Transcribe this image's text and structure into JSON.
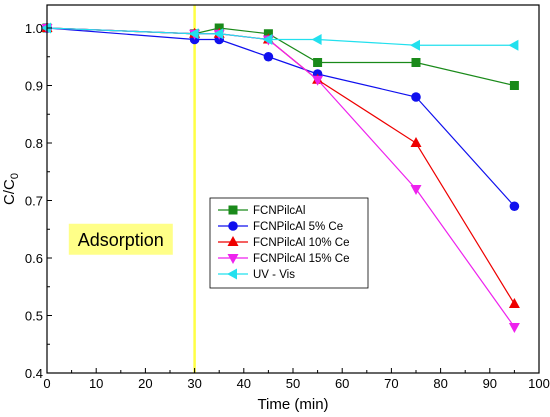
{
  "chart_data": {
    "type": "line",
    "xlabel": "Time (min)",
    "ylabel_main": "C/C",
    "ylabel_sub": "0",
    "xlim": [
      0,
      100
    ],
    "ylim": [
      0.4,
      1.04
    ],
    "xticks": [
      0,
      10,
      20,
      30,
      40,
      50,
      60,
      70,
      80,
      90,
      100
    ],
    "xtick_labels": [
      "0",
      "10",
      "20",
      "30",
      "40",
      "50",
      "60",
      "70",
      "80",
      "90",
      "100"
    ],
    "yticks": [
      0.4,
      0.5,
      0.6,
      0.7,
      0.8,
      0.9,
      1.0
    ],
    "ytick_labels": [
      "0.4",
      "0.5",
      "0.6",
      "0.7",
      "0.8",
      "0.9",
      "1.0"
    ],
    "grid": false,
    "legend_position": "center",
    "vline_x": 30,
    "vline_color": "#ffff44",
    "annotation": {
      "text": "Adsorption",
      "x": 15,
      "y": 0.63,
      "bg": "#ffff88"
    },
    "series": [
      {
        "name": "FCNPilcAl",
        "color": "#1a8a1a",
        "marker": "square",
        "x": [
          0,
          30,
          35,
          45,
          55,
          75,
          95
        ],
        "y": [
          1.0,
          0.99,
          1.0,
          0.99,
          0.94,
          0.94,
          0.9
        ]
      },
      {
        "name": "FCNPilcAl 5% Ce",
        "color": "#1010ee",
        "marker": "circle",
        "x": [
          0,
          30,
          35,
          45,
          55,
          75,
          95
        ],
        "y": [
          1.0,
          0.98,
          0.98,
          0.95,
          0.92,
          0.88,
          0.69
        ]
      },
      {
        "name": "FCNPilcAl 10% Ce",
        "color": "#ee0000",
        "marker": "triangle-up",
        "x": [
          0,
          30,
          35,
          45,
          55,
          75,
          95
        ],
        "y": [
          1.0,
          0.99,
          0.99,
          0.98,
          0.91,
          0.8,
          0.52
        ]
      },
      {
        "name": "FCNPilcAl 15% Ce",
        "color": "#ee22ee",
        "marker": "triangle-down",
        "x": [
          0,
          30,
          35,
          45,
          55,
          75,
          95
        ],
        "y": [
          1.0,
          0.99,
          0.99,
          0.98,
          0.91,
          0.72,
          0.48
        ]
      },
      {
        "name": "UV - Vis",
        "color": "#22e0ee",
        "marker": "triangle-left",
        "x": [
          0,
          30,
          35,
          45,
          55,
          75,
          95
        ],
        "y": [
          1.0,
          0.99,
          0.99,
          0.98,
          0.98,
          0.97,
          0.97
        ]
      }
    ]
  }
}
